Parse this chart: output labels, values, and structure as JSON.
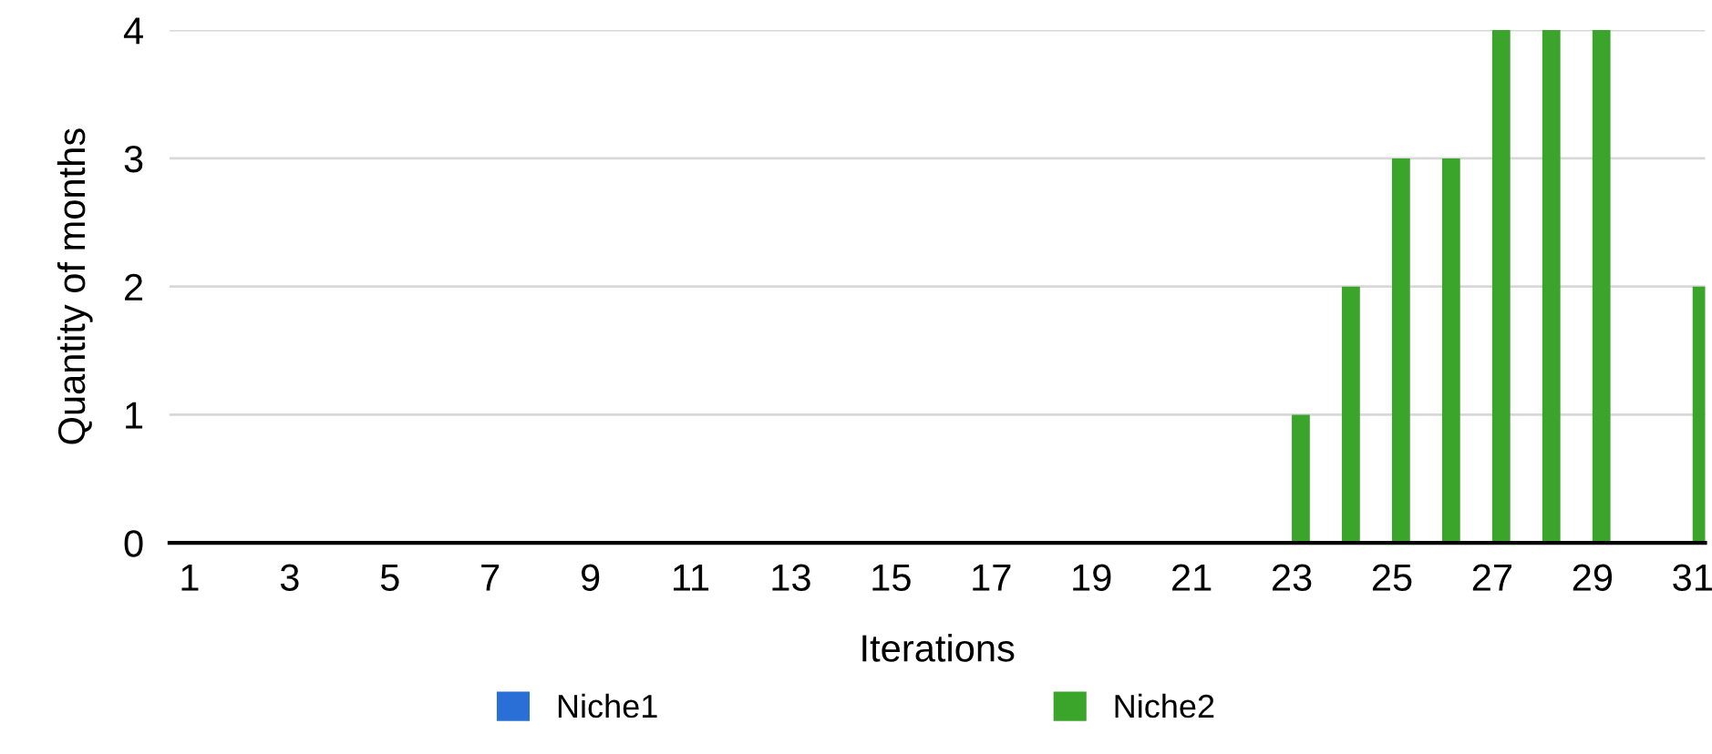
{
  "chart_data": {
    "type": "bar",
    "xlabel": "Iterations",
    "ylabel": "Quantity of months",
    "categories": [
      "1",
      null,
      "3",
      null,
      "5",
      null,
      "7",
      null,
      "9",
      null,
      "11",
      null,
      "13",
      null,
      "15",
      null,
      "17",
      null,
      "19",
      null,
      "21",
      null,
      "23",
      null,
      "25",
      null,
      "27",
      null,
      "29",
      null,
      "31"
    ],
    "series": [
      {
        "name": "Niche1",
        "color": "#2a6fd6",
        "values": [
          0,
          0,
          0,
          0,
          0,
          0,
          0,
          0,
          0,
          0,
          0,
          0,
          0,
          0,
          0,
          0,
          0,
          0,
          0,
          0,
          0,
          0,
          0,
          0,
          0,
          0,
          0,
          0,
          0,
          0,
          0
        ]
      },
      {
        "name": "Niche2",
        "color": "#3aa52a",
        "values": [
          0,
          0,
          0,
          0,
          0,
          0,
          0,
          0,
          0,
          0,
          0,
          0,
          0,
          0,
          0,
          0,
          0,
          0,
          0,
          0,
          0,
          0,
          1,
          2,
          3,
          3,
          4,
          4,
          4,
          0,
          2
        ]
      }
    ],
    "ylim": [
      0,
      4
    ],
    "yticks": [
      0,
      1,
      2,
      3,
      4
    ],
    "grid": "y",
    "legend": "bottom"
  }
}
